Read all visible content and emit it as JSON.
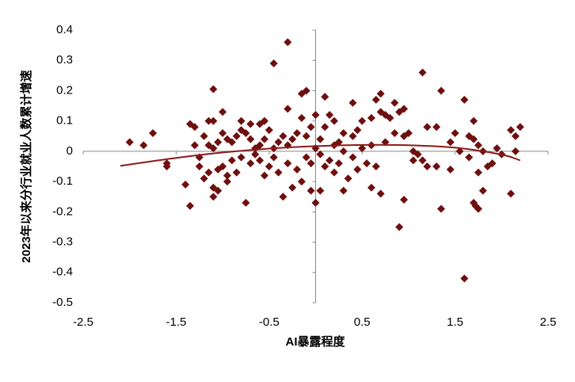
{
  "chart_data": {
    "type": "scatter",
    "x_label": "AI暴露程度",
    "y_label": "2023年以来分行业就业人数累计增速",
    "color": "#6e0f0f",
    "xlim": [
      -2.5,
      2.5
    ],
    "xticks": [
      -2.5,
      -1.5,
      -0.5,
      0.5,
      1.5,
      2.5
    ],
    "ylim": [
      -0.5,
      0.4
    ],
    "yticks": [
      0.4,
      0.3,
      0.2,
      0.1,
      0,
      -0.1,
      -0.2,
      -0.3,
      -0.4,
      -0.5
    ],
    "x": [
      -0.3,
      -0.45,
      1.15,
      -1.1,
      1.35,
      -0.15,
      -0.1,
      0.7,
      0.1,
      1.6,
      0.4,
      0.85,
      0.65,
      -1.0,
      0.95,
      -0.3,
      -0.55,
      -1.35,
      -1.3,
      -1.15,
      -1.1,
      -0.8,
      -0.7,
      -0.6,
      -1.75,
      -2.0,
      -1.85,
      -1.6,
      -1.6,
      -1.4,
      -1.35,
      -1.2,
      -1.1,
      -1.1,
      -1.05,
      -0.95,
      -0.75,
      -0.55,
      -0.35,
      -0.25,
      -0.05,
      0.0,
      0.05,
      0.2,
      0.3,
      0.35,
      0.55,
      0.6,
      0.7,
      0.9,
      0.95,
      1.05,
      1.2,
      1.3,
      1.35,
      1.45,
      1.6,
      1.7,
      1.72,
      1.75,
      1.8,
      1.75,
      1.9,
      1.85,
      2.1,
      2.15,
      2.2,
      2.1,
      2.15,
      1.95,
      2.0,
      1.7,
      1.65,
      1.7,
      1.75,
      1.8,
      1.5,
      1.45,
      1.3,
      1.2,
      1.0,
      1.05,
      1.1,
      1.15,
      0.9,
      0.8,
      0.75,
      0.7,
      0.6,
      0.5,
      0.45,
      0.4,
      0.3,
      0.25,
      0.2,
      0.15,
      0.1,
      0.05,
      0.0,
      -0.05,
      -0.1,
      -0.15,
      -0.2,
      -0.25,
      -0.3,
      -0.35,
      -0.4,
      -0.45,
      -0.5,
      -0.55,
      -0.6,
      -0.65,
      -0.7,
      -0.75,
      -0.8,
      -0.85,
      -0.9,
      -0.95,
      -1.0,
      -1.05,
      -1.1,
      -1.15,
      -1.2,
      -1.25,
      -1.0,
      -0.9,
      -0.85,
      -0.8,
      -0.7,
      -0.65,
      -0.6,
      -0.5,
      -0.45,
      -0.4,
      -0.3,
      -0.2,
      -0.15,
      -0.1,
      0.05,
      0.1,
      0.15,
      0.25,
      0.3,
      0.4,
      0.45,
      0.5,
      0.6,
      0.65,
      0.75,
      0.85,
      0.95,
      -1.15,
      -1.05,
      -0.95,
      -1.25,
      -1.3,
      1.65,
      1.55,
      0.0,
      -0.05,
      0.2
    ],
    "values": [
      0.36,
      0.29,
      0.26,
      0.205,
      0.2,
      0.19,
      0.2,
      0.19,
      0.18,
      0.17,
      0.16,
      0.16,
      0.17,
      0.13,
      0.14,
      0.14,
      0.1,
      0.09,
      0.08,
      0.1,
      0.1,
      0.1,
      0.09,
      0.09,
      0.06,
      0.03,
      0.02,
      -0.04,
      -0.05,
      -0.11,
      -0.18,
      -0.09,
      -0.12,
      -0.15,
      -0.13,
      -0.1,
      -0.17,
      -0.08,
      -0.15,
      -0.12,
      -0.13,
      -0.17,
      -0.13,
      -0.07,
      -0.13,
      -0.09,
      -0.04,
      -0.12,
      -0.14,
      -0.25,
      -0.16,
      -0.03,
      -0.05,
      -0.05,
      -0.19,
      -0.06,
      -0.42,
      -0.17,
      -0.18,
      -0.19,
      -0.13,
      -0.07,
      -0.04,
      -0.05,
      -0.14,
      0.0,
      0.08,
      0.07,
      0.05,
      0.01,
      -0.01,
      0.1,
      0.05,
      0.04,
      0.02,
      0.0,
      0.06,
      0.03,
      0.08,
      0.08,
      0.06,
      0.0,
      -0.01,
      -0.03,
      0.13,
      0.11,
      0.12,
      0.13,
      0.11,
      0.1,
      0.07,
      0.05,
      0.06,
      0.03,
      0.1,
      0.12,
      0.08,
      0.04,
      0.12,
      0.08,
      0.05,
      0.11,
      0.06,
      0.04,
      0.02,
      0.05,
      0.03,
      0.01,
      0.07,
      0.04,
      0.02,
      0.01,
      0.04,
      0.06,
      0.07,
      0.05,
      0.03,
      0.04,
      0.06,
      0.03,
      0.01,
      0.02,
      0.05,
      -0.02,
      -0.05,
      -0.03,
      -0.07,
      -0.02,
      -0.04,
      -0.01,
      -0.03,
      -0.05,
      -0.02,
      -0.07,
      -0.04,
      -0.06,
      -0.1,
      -0.02,
      -0.01,
      -0.05,
      -0.03,
      -0.04,
      0.0,
      -0.02,
      -0.06,
      0.01,
      0.02,
      -0.05,
      0.03,
      0.06,
      0.05,
      -0.07,
      -0.06,
      -0.08,
      -0.05,
      0.02,
      -0.02,
      0.0,
      0.01,
      -0.04,
      0.02
    ],
    "trend": {
      "type": "line",
      "color": "#8b1a1a",
      "x": [
        -2.1,
        -1.5,
        -1.0,
        -0.5,
        0.0,
        0.5,
        1.0,
        1.5,
        2.0,
        2.2
      ],
      "values": [
        -0.048,
        -0.022,
        -0.004,
        0.009,
        0.017,
        0.021,
        0.02,
        0.012,
        -0.011,
        -0.03
      ]
    }
  }
}
